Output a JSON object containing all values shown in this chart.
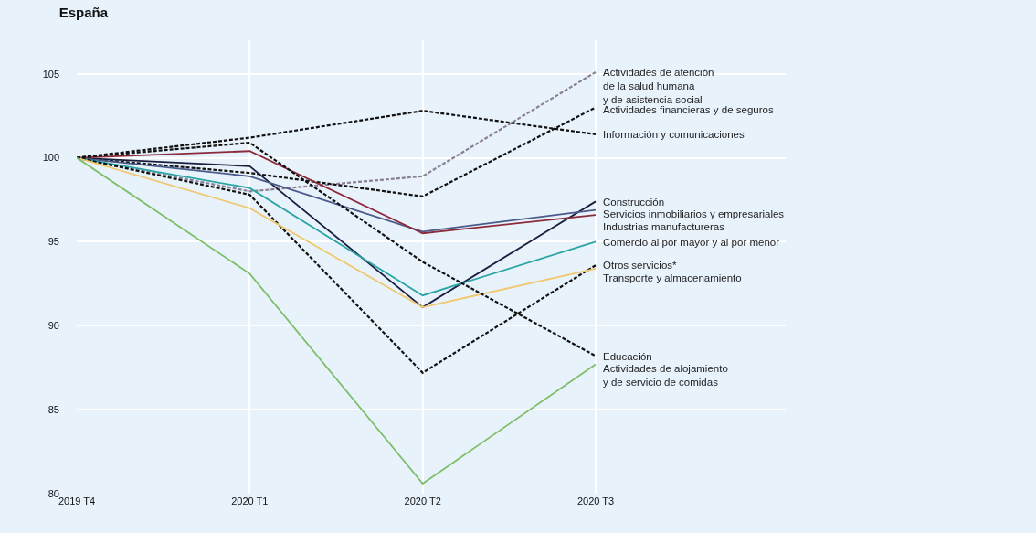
{
  "chart_data": {
    "type": "line",
    "title": "España",
    "categories": [
      "2019 T4",
      "2020 T1",
      "2020 T2",
      "2020 T3"
    ],
    "ylim": [
      80,
      107
    ],
    "yticks": [
      80,
      85,
      90,
      95,
      100,
      105
    ],
    "grid": true,
    "legend": false,
    "marker": "none",
    "series": [
      {
        "name": "Actividades de atención\nde la salud humana\ny de asistencia social",
        "color": "#8a8096",
        "line_style": "dashed",
        "values": [
          100,
          98.0,
          98.9,
          105.1
        ]
      },
      {
        "name": "Actividades financieras y de seguros",
        "color": "#111111",
        "line_style": "dashed",
        "values": [
          100,
          99.1,
          97.7,
          103.0
        ]
      },
      {
        "name": "Información y comunicaciones",
        "color": "#111111",
        "line_style": "dashed",
        "values": [
          100,
          101.2,
          102.8,
          101.4
        ]
      },
      {
        "name": "Construcción",
        "color": "#1a1f3f",
        "line_style": "solid",
        "values": [
          100,
          99.5,
          91.1,
          97.4
        ]
      },
      {
        "name": "Servicios inmobiliarios y empresariales",
        "color": "#4a5a8a",
        "line_style": "solid",
        "values": [
          100,
          98.9,
          95.6,
          96.9
        ]
      },
      {
        "name": "Industrias manufactureras",
        "color": "#8b2a3a",
        "line_style": "solid",
        "values": [
          100,
          100.4,
          95.5,
          96.6
        ]
      },
      {
        "name": "Comercio al por mayor y al por menor",
        "color": "#2aa5a5",
        "line_style": "solid",
        "values": [
          100,
          98.2,
          91.8,
          95.0
        ]
      },
      {
        "name": "Otros servicios*",
        "color": "#111111",
        "line_style": "dashed",
        "values": [
          100,
          97.8,
          87.2,
          93.6
        ]
      },
      {
        "name": "Transporte y almacenamiento",
        "color": "#f0c870",
        "line_style": "solid",
        "values": [
          100,
          97.0,
          91.1,
          93.4
        ]
      },
      {
        "name": "Educación",
        "color": "#111111",
        "line_style": "dashed",
        "values": [
          100,
          100.9,
          93.8,
          88.2
        ]
      },
      {
        "name": "Actividades de alojamiento\ny de servicio de comidas",
        "color": "#7dbf6a",
        "line_style": "solid",
        "values": [
          100,
          93.1,
          80.6,
          87.7
        ]
      }
    ]
  }
}
